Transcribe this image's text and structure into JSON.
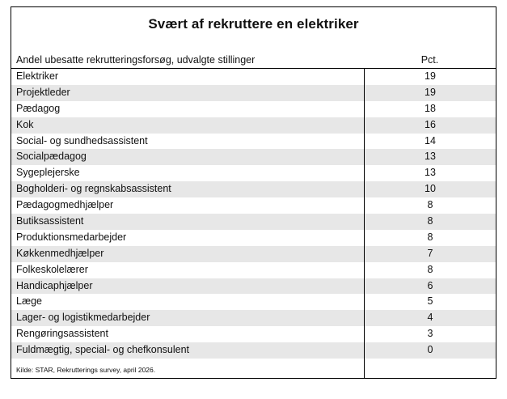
{
  "title": "Svært af rekruttere en elektriker",
  "table": {
    "header_label": "Andel ubesatte rekrutteringsforsøg, udvalgte stillinger",
    "header_value": "Pct.",
    "source": "Kilde: STAR, Rekrutterings survey, april 2026."
  },
  "colors": {
    "stripe": "#e7e7e7",
    "border": "#000000",
    "text": "#111111",
    "background": "#ffffff"
  },
  "chart_data": {
    "type": "table",
    "title": "Svært af rekruttere en elektriker",
    "columns": [
      "Andel ubesatte rekrutteringsforsøg, udvalgte stillinger",
      "Pct."
    ],
    "categories": [
      "Elektriker",
      "Projektleder",
      "Pædagog",
      "Kok",
      "Social- og sundhedsassistent",
      "Socialpædagog",
      "Sygeplejerske",
      "Bogholderi- og regnskabsassistent",
      "Pædagogmedhjælper",
      "Butiksassistent",
      "Produktionsmedarbejder",
      "Køkkenmedhjælper",
      "Folkeskolelærer",
      "Handicaphjælper",
      "Læge",
      "Lager- og logistikmedarbejder",
      "Rengøringsassistent",
      "Fuldmægtig, special- og chefkonsulent"
    ],
    "values": [
      19,
      19,
      18,
      16,
      14,
      13,
      13,
      10,
      8,
      8,
      8,
      7,
      8,
      6,
      5,
      4,
      3,
      0
    ],
    "source": "Kilde: STAR, Rekrutterings survey, april 2026.",
    "layout": {
      "zebra_striping": true,
      "value_column_divider": true,
      "title_position": "center-top"
    }
  }
}
